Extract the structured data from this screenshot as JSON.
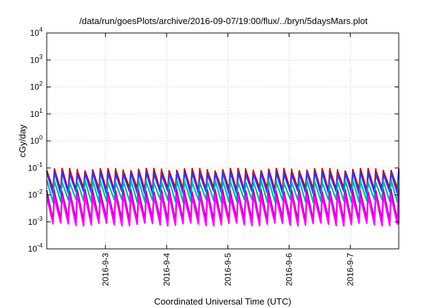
{
  "chart_data": {
    "type": "line",
    "title": "/data/run/goesPlots/archive/2016-09-07/19:00/flux/../bryn/5daysMars.plot",
    "xlabel": "Coordinated Universal Time (UTC)",
    "ylabel": "cGy/day",
    "y_scale": "log",
    "ylim": [
      0.0001,
      10000
    ],
    "y_ticks": [
      {
        "base": "10",
        "exp": "-4",
        "value": 0.0001
      },
      {
        "base": "10",
        "exp": "-3",
        "value": 0.001
      },
      {
        "base": "10",
        "exp": "-2",
        "value": 0.01
      },
      {
        "base": "10",
        "exp": "-1",
        "value": 0.1
      },
      {
        "base": "10",
        "exp": "0",
        "value": 1
      },
      {
        "base": "10",
        "exp": "1",
        "value": 10
      },
      {
        "base": "10",
        "exp": "2",
        "value": 100
      },
      {
        "base": "10",
        "exp": "3",
        "value": 1000
      },
      {
        "base": "10",
        "exp": "4",
        "value": 10000
      }
    ],
    "xlim": [
      "2016-09-02T01:00",
      "2016-09-07T19:00"
    ],
    "x_ticks": [
      "2016-9-3",
      "2016-9-4",
      "2016-9-5",
      "2016-9-6",
      "2016-9-7"
    ],
    "x_tick_values": [
      "2016-09-03T00:00",
      "2016-09-04T00:00",
      "2016-09-05T00:00",
      "2016-09-06T00:00",
      "2016-09-07T00:00"
    ],
    "grid": true,
    "sawtooth_period_hours": 3,
    "series": [
      {
        "color": "#cc0000",
        "peak": 0.085,
        "trough": 0.016
      },
      {
        "color": "#3333ff",
        "peak": 0.065,
        "trough": 0.012
      },
      {
        "color": "#00b0b0",
        "peak": 0.032,
        "trough": 0.006
      },
      {
        "color": "#b000b0",
        "peak": 0.014,
        "trough": 0.0012
      },
      {
        "color": "#ff00ff",
        "peak": 0.009,
        "trough": 0.0008
      }
    ]
  }
}
